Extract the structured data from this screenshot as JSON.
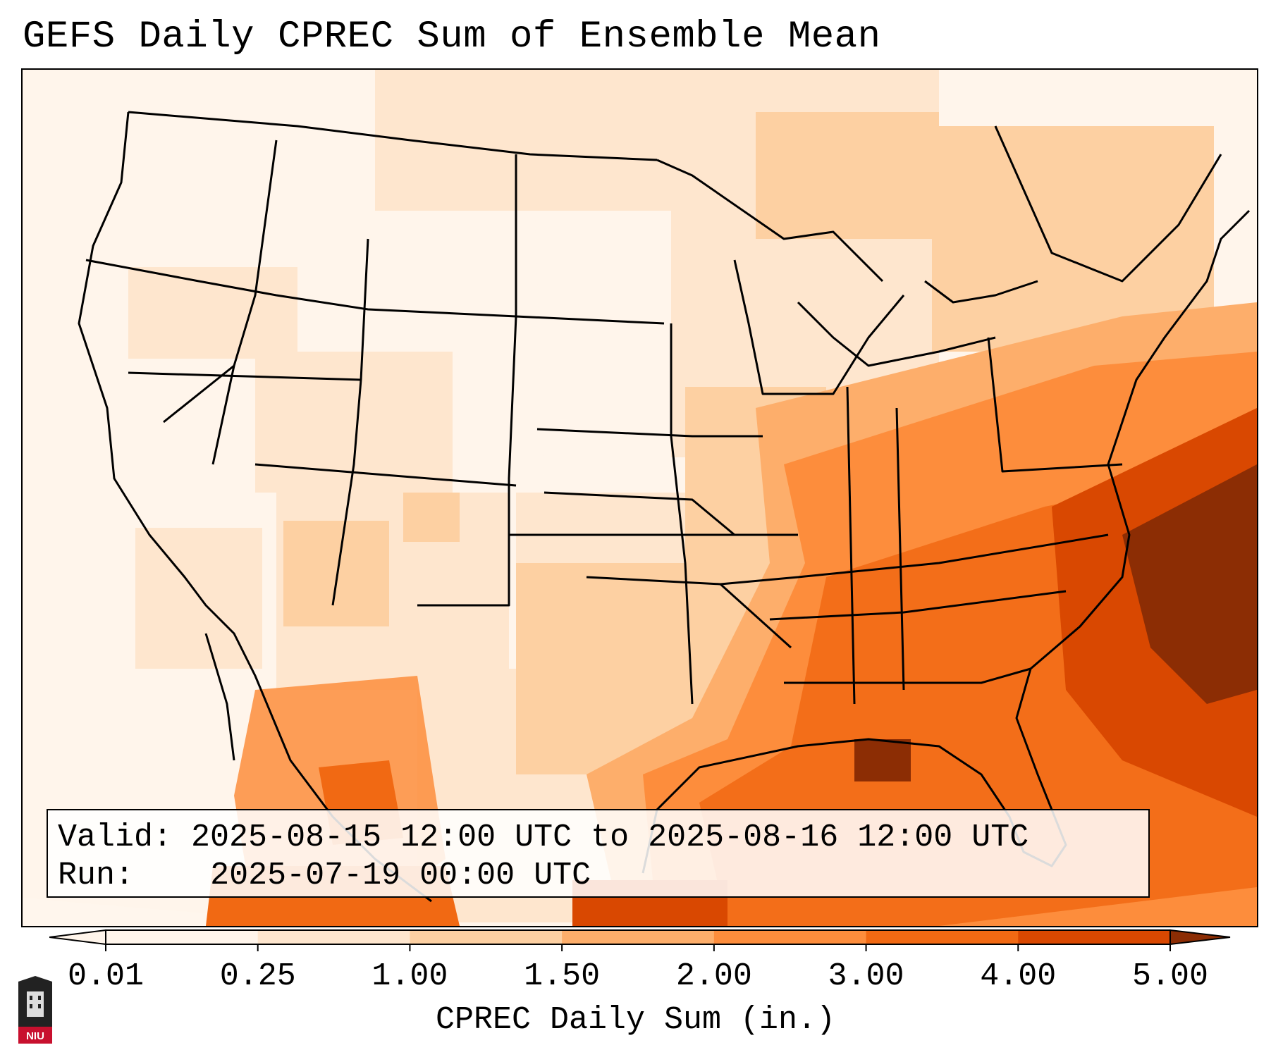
{
  "title": "GEFS Daily CPREC Sum of Ensemble Mean",
  "valid_label": "Valid:",
  "valid_value": "2025-08-15 12:00 UTC to 2025-08-16 12:00 UTC",
  "run_label": "Run:",
  "run_value": "2025-07-19 00:00 UTC",
  "colorbar": {
    "label": "CPREC Daily Sum (in.)",
    "ticks": [
      "0.01",
      "0.25",
      "1.00",
      "1.50",
      "2.00",
      "3.00",
      "4.00",
      "5.00"
    ],
    "colors": [
      "#fff5eb",
      "#fee6ce",
      "#fdd0a2",
      "#fdae6b",
      "#fd8d3c",
      "#f16913",
      "#d94801",
      "#8c2d04"
    ],
    "extend": "both"
  },
  "logo_text": "NIU",
  "colors": {
    "border": "#000000",
    "background": "#ffffff"
  }
}
